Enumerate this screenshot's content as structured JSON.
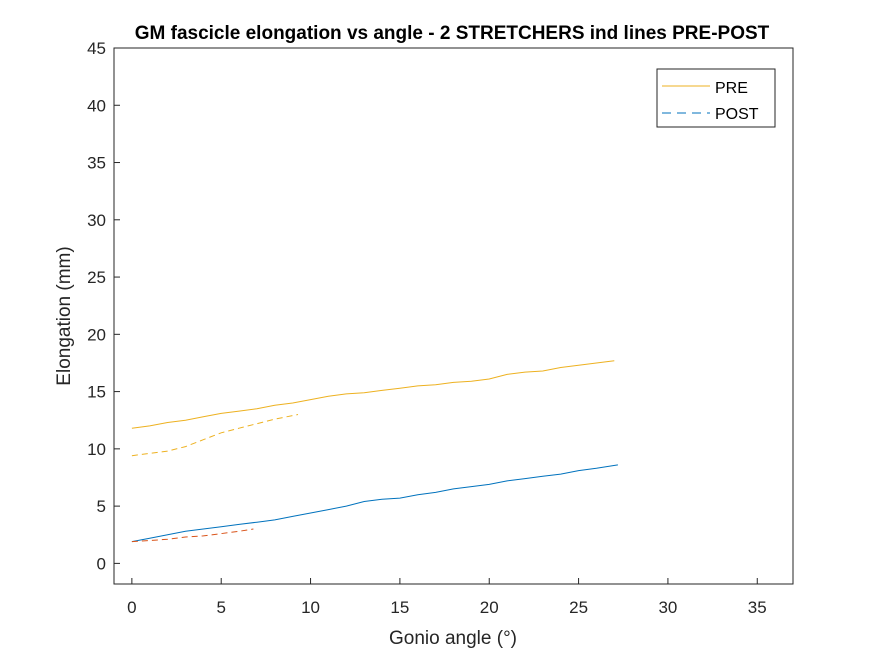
{
  "chart_data": {
    "type": "line",
    "title": "GM fascicle elongation vs angle - 2 STRETCHERS ind lines PRE-POST",
    "xlabel": "Gonio angle (°)",
    "ylabel": "Elongation (mm)",
    "xlim": [
      -1,
      37
    ],
    "ylim": [
      -1.8,
      45
    ],
    "xticks": [
      0,
      5,
      10,
      15,
      20,
      25,
      30,
      35
    ],
    "yticks": [
      0,
      5,
      10,
      15,
      20,
      25,
      30,
      35,
      40,
      45
    ],
    "grid": false,
    "legend": {
      "position": "top-right",
      "entries": [
        {
          "label": "PRE",
          "style": "solid",
          "color": "#EDB120"
        },
        {
          "label": "POST",
          "style": "dashed",
          "color": "#0072BD"
        }
      ]
    },
    "series": [
      {
        "style": "solid",
        "color": "#EDB120",
        "x": [
          0,
          1,
          2,
          3,
          4,
          5,
          6,
          7,
          8,
          9,
          10,
          11,
          12,
          13,
          14,
          15,
          16,
          17,
          18,
          19,
          20,
          21,
          22,
          23,
          24,
          25,
          26,
          27
        ],
        "y": [
          11.8,
          12.0,
          12.3,
          12.5,
          12.8,
          13.1,
          13.3,
          13.5,
          13.8,
          14.0,
          14.3,
          14.6,
          14.8,
          14.9,
          15.1,
          15.3,
          15.5,
          15.6,
          15.8,
          15.9,
          16.1,
          16.5,
          16.7,
          16.8,
          17.1,
          17.3,
          17.5,
          17.7
        ]
      },
      {
        "style": "dashed",
        "color": "#EDB120",
        "x": [
          0,
          1,
          2,
          3,
          4,
          5,
          6,
          7,
          8,
          9,
          9.3
        ],
        "y": [
          9.4,
          9.6,
          9.8,
          10.2,
          10.8,
          11.4,
          11.8,
          12.2,
          12.6,
          12.9,
          13.0
        ]
      },
      {
        "style": "solid",
        "color": "#0072BD",
        "x": [
          0,
          1,
          2,
          3,
          4,
          5,
          6,
          7,
          8,
          9,
          10,
          11,
          12,
          13,
          14,
          15,
          16,
          17,
          18,
          19,
          20,
          21,
          22,
          23,
          24,
          25,
          26,
          27.2
        ],
        "y": [
          1.9,
          2.2,
          2.5,
          2.8,
          3.0,
          3.2,
          3.4,
          3.6,
          3.8,
          4.1,
          4.4,
          4.7,
          5.0,
          5.4,
          5.6,
          5.7,
          6.0,
          6.2,
          6.5,
          6.7,
          6.9,
          7.2,
          7.4,
          7.6,
          7.8,
          8.1,
          8.3,
          8.6
        ]
      },
      {
        "style": "dashed",
        "color": "#D95319",
        "x": [
          0,
          1,
          2,
          3,
          4,
          5,
          6,
          6.8
        ],
        "y": [
          1.9,
          2.0,
          2.1,
          2.3,
          2.4,
          2.6,
          2.8,
          3.0
        ]
      }
    ]
  }
}
